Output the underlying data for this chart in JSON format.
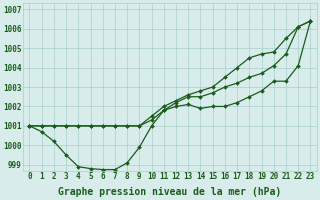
{
  "x": [
    0,
    1,
    2,
    3,
    4,
    5,
    6,
    7,
    8,
    9,
    10,
    11,
    12,
    13,
    14,
    15,
    16,
    17,
    18,
    19,
    20,
    21,
    22,
    23
  ],
  "line_dip": [
    1001.0,
    1000.7,
    1000.2,
    999.5,
    998.9,
    998.8,
    998.75,
    998.75,
    999.1,
    999.9,
    1001.0,
    1001.8,
    1002.0,
    1002.1,
    1001.9,
    1002.0,
    1002.0,
    1002.2,
    1002.5,
    1002.8,
    1003.3,
    1003.3,
    1004.1,
    1006.4
  ],
  "line_upper": [
    1001.0,
    1001.0,
    1001.0,
    1001.0,
    1001.0,
    1001.0,
    1001.0,
    1001.0,
    1001.0,
    1001.0,
    1001.5,
    1002.0,
    1002.3,
    1002.6,
    1002.8,
    1003.0,
    1003.5,
    1004.0,
    1004.5,
    1004.7,
    1004.8,
    1005.5,
    1006.1,
    1006.4
  ],
  "line_mid": [
    1001.0,
    1001.0,
    1001.0,
    1001.0,
    1001.0,
    1001.0,
    1001.0,
    1001.0,
    1001.0,
    1001.0,
    1001.3,
    1001.8,
    1002.2,
    1002.5,
    1002.5,
    1002.7,
    1003.0,
    1003.2,
    1003.5,
    1003.7,
    1004.1,
    1004.7,
    1006.1,
    1006.4
  ],
  "background_color": "#d8ecec",
  "grid_color": "#aacece",
  "line_color": "#1a5c1a",
  "marker": "D",
  "markersize": 2.0,
  "linewidth": 0.9,
  "ylim_min": 998.7,
  "ylim_max": 1007.3,
  "yticks": [
    999,
    1000,
    1001,
    1002,
    1003,
    1004,
    1005,
    1006,
    1007
  ],
  "xlabel": "Graphe pression niveau de la mer (hPa)",
  "tick_fontsize": 5.5,
  "label_fontsize": 7.0
}
